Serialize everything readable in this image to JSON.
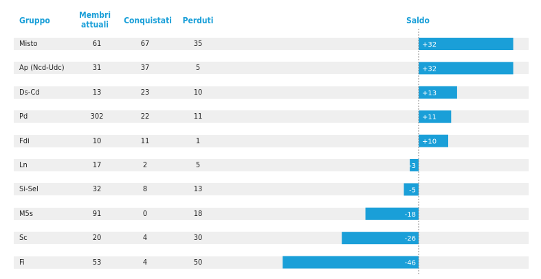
{
  "headers": {
    "gruppo": "Gruppo",
    "membri_1": "Membri",
    "membri_2": "attuali",
    "conquistati": "Conquistati",
    "perduti": "Perduti",
    "saldo": "Saldo"
  },
  "colors": {
    "accent": "#1a9fd8",
    "row_bg": "#efefef",
    "axis": "#888888"
  },
  "chart_data": {
    "type": "bar",
    "orientation": "horizontal",
    "categories": [
      "Misto",
      "Ap (Ncd-Udc)",
      "Ds-Cd",
      "Pd",
      "Fdi",
      "Ln",
      "Si-Sel",
      "M5s",
      "Sc",
      "Fi"
    ],
    "columns": [
      "Gruppo",
      "Membri attuali",
      "Conquistati",
      "Perduti",
      "Saldo"
    ],
    "rows": [
      {
        "gruppo": "Misto",
        "membri": 61,
        "conquistati": 67,
        "perduti": 35,
        "saldo": 32,
        "label": "+32"
      },
      {
        "gruppo": "Ap (Ncd-Udc)",
        "membri": 31,
        "conquistati": 37,
        "perduti": 5,
        "saldo": 32,
        "label": "+32"
      },
      {
        "gruppo": "Ds-Cd",
        "membri": 13,
        "conquistati": 23,
        "perduti": 10,
        "saldo": 13,
        "label": "+13"
      },
      {
        "gruppo": "Pd",
        "membri": 302,
        "conquistati": 22,
        "perduti": 11,
        "saldo": 11,
        "label": "+11"
      },
      {
        "gruppo": "Fdi",
        "membri": 10,
        "conquistati": 11,
        "perduti": 1,
        "saldo": 10,
        "label": "+10"
      },
      {
        "gruppo": "Ln",
        "membri": 17,
        "conquistati": 2,
        "perduti": 5,
        "saldo": -3,
        "label": "-3"
      },
      {
        "gruppo": "Si-Sel",
        "membri": 32,
        "conquistati": 8,
        "perduti": 13,
        "saldo": -5,
        "label": "-5"
      },
      {
        "gruppo": "M5s",
        "membri": 91,
        "conquistati": 0,
        "perduti": 18,
        "saldo": -18,
        "label": "-18"
      },
      {
        "gruppo": "Sc",
        "membri": 20,
        "conquistati": 4,
        "perduti": 30,
        "saldo": -26,
        "label": "-26"
      },
      {
        "gruppo": "Fi",
        "membri": 53,
        "conquistati": 4,
        "perduti": 50,
        "saldo": -46,
        "label": "-46"
      }
    ],
    "series": [
      {
        "name": "Saldo",
        "values": [
          32,
          32,
          13,
          11,
          10,
          -3,
          -5,
          -18,
          -26,
          -46
        ]
      }
    ],
    "xlim": [
      -46,
      32
    ],
    "grid": false
  }
}
